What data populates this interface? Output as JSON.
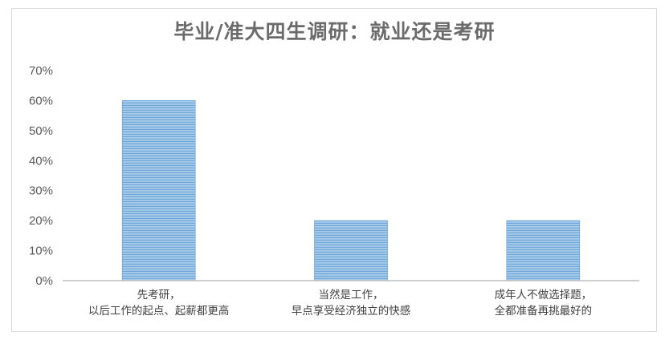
{
  "chart_data": {
    "type": "bar",
    "title": "毕业/准大四生调研：就业还是考研",
    "xlabel": "",
    "ylabel": "",
    "ylim": [
      0,
      0.7
    ],
    "ytick_labels": [
      "0%",
      "10%",
      "20%",
      "30%",
      "40%",
      "50%",
      "60%",
      "70%"
    ],
    "categories": [
      [
        "先考研，",
        "以后工作的起点、起薪都更高"
      ],
      [
        "当然是工作，",
        "早点享受经济独立的快感"
      ],
      [
        "成年人不做选择题，",
        "全都准备再挑最好的"
      ]
    ],
    "values": [
      0.6,
      0.2,
      0.2
    ],
    "bar_color": "#9dc3e6",
    "bar_stripe_color": "#5b9bd5",
    "grid": false,
    "legend": "none"
  }
}
